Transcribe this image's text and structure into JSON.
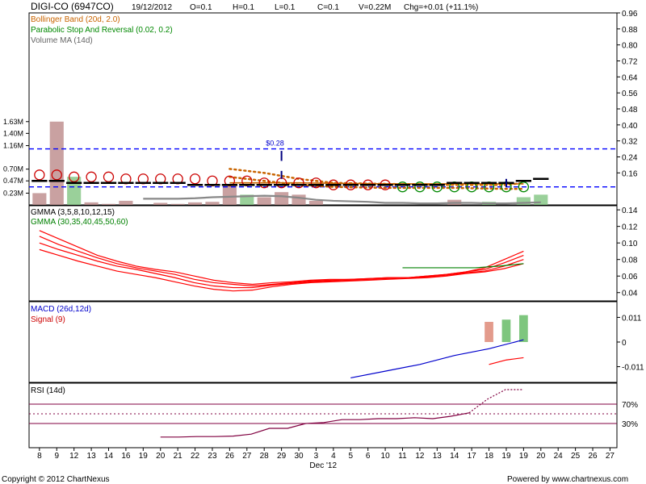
{
  "header": {
    "symbol": "DIGI-CO (6947CO)",
    "date": "19/12/2012",
    "open": "O=0.1",
    "high": "H=0.1",
    "low": "L=0.1",
    "close": "C=0.1",
    "volume": "V=0.22M",
    "change": "Chg=+0.01 (+11.1%)"
  },
  "footer": {
    "copyright": "Copyright © 2012 ChartNexus",
    "powered": "Powered by www.chartnexus.com"
  },
  "colors": {
    "bollinger": "#c86400",
    "psar": "#cc0000",
    "psar_green": "#008800",
    "volume_ma": "#888888",
    "volume_up": "#88c888",
    "volume_down": "#c09090",
    "gmma_short": "#ff0000",
    "gmma_long": "#008000",
    "macd": "#0000cc",
    "signal": "#ff0000",
    "rsi": "#800040",
    "threshold": "#0000ff"
  },
  "chart_data": [
    {
      "type": "candlestick",
      "legend": [
        "Bollinger Band (20d, 2.0)",
        "Parabolic Stop And Reversal (0.02, 0.2)",
        "Volume MA (14d)"
      ],
      "ylim": [
        0.0,
        0.96
      ],
      "ticks_right": [
        "0.96",
        "0.88",
        "0.80",
        "0.72",
        "0.64",
        "0.56",
        "0.48",
        "0.40",
        "0.32",
        "0.24",
        "0.16"
      ],
      "volume_ticks": [
        "1.63M",
        "1.40M",
        "1.16M",
        "0.70M",
        "0.47M",
        "0.23M"
      ],
      "annotation": "$0.28",
      "reference_lines": [
        0.28,
        0.09
      ],
      "x_ticks": [
        "8",
        "9",
        "12",
        "13",
        "14",
        "16",
        "19",
        "20",
        "21",
        "22",
        "23",
        "26",
        "27",
        "28",
        "29",
        "30",
        "3",
        "4",
        "5",
        "6",
        "10",
        "11",
        "12",
        "13",
        "14",
        "17",
        "18",
        "19",
        "19",
        "20",
        "24",
        "25",
        "26",
        "27"
      ],
      "x_month_label": "Dec '12",
      "close": [
        0.12,
        0.12,
        0.11,
        0.11,
        0.11,
        0.11,
        0.11,
        0.11,
        0.11,
        0.1,
        0.1,
        0.1,
        0.1,
        0.1,
        0.1,
        0.1,
        0.1,
        0.1,
        0.1,
        0.1,
        0.1,
        0.1,
        0.1,
        0.1,
        0.11,
        0.11,
        0.11,
        0.11,
        0.12,
        0.13
      ],
      "psar": [
        0.15,
        0.15,
        0.14,
        0.14,
        0.14,
        0.13,
        0.13,
        0.13,
        0.13,
        0.13,
        0.12,
        0.12,
        0.12,
        0.11,
        0.11,
        0.11,
        0.11,
        0.1,
        0.1,
        0.1,
        0.1,
        0.09,
        0.09,
        0.09,
        0.09,
        0.09,
        0.09,
        0.09,
        0.09
      ],
      "volume": [
        0.23,
        1.63,
        0.55,
        0.05,
        0.02,
        0.08,
        0.0,
        0.04,
        0.02,
        0.05,
        0.06,
        0.4,
        0.2,
        0.15,
        0.25,
        0.2,
        0.08,
        0.0,
        0.0,
        0.0,
        0.0,
        0.0,
        0.0,
        0.0,
        0.1,
        0.0,
        0.06,
        0.0,
        0.15,
        0.2
      ]
    },
    {
      "type": "line",
      "legend": [
        "GMMA (3,5,8,10,12,15)",
        "GMMA (30,35,40,45,50,60)"
      ],
      "ylim": [
        0.03,
        0.145
      ],
      "ticks_right": [
        "0.14",
        "0.12",
        "0.10",
        "0.08",
        "0.06",
        "0.04"
      ],
      "series_short": [
        [
          0.115,
          0.105,
          0.095,
          0.085,
          0.078,
          0.072,
          0.068,
          0.065,
          0.06,
          0.055,
          0.052,
          0.05,
          0.052,
          0.053,
          0.055,
          0.056,
          0.056,
          0.057,
          0.058,
          0.058,
          0.06,
          0.062,
          0.065,
          0.07,
          0.08,
          0.09
        ],
        [
          0.108,
          0.098,
          0.09,
          0.082,
          0.075,
          0.07,
          0.066,
          0.062,
          0.056,
          0.052,
          0.05,
          0.048,
          0.05,
          0.052,
          0.054,
          0.055,
          0.056,
          0.057,
          0.058,
          0.058,
          0.06,
          0.062,
          0.065,
          0.068,
          0.076,
          0.085
        ],
        [
          0.1,
          0.092,
          0.085,
          0.078,
          0.072,
          0.068,
          0.063,
          0.058,
          0.052,
          0.048,
          0.046,
          0.046,
          0.049,
          0.051,
          0.053,
          0.054,
          0.055,
          0.056,
          0.057,
          0.058,
          0.059,
          0.061,
          0.064,
          0.066,
          0.072,
          0.08
        ],
        [
          0.092,
          0.085,
          0.078,
          0.072,
          0.066,
          0.062,
          0.058,
          0.053,
          0.048,
          0.044,
          0.042,
          0.043,
          0.047,
          0.05,
          0.052,
          0.053,
          0.054,
          0.055,
          0.056,
          0.057,
          0.058,
          0.06,
          0.063,
          0.065,
          0.069,
          0.075
        ]
      ],
      "series_long": [
        0.07,
        0.07,
        0.07,
        0.07,
        0.072,
        0.075
      ]
    },
    {
      "type": "bar-line",
      "legend": [
        "MACD (26d,12d)",
        "Signal (9)"
      ],
      "ylim": [
        -0.018,
        0.018
      ],
      "ticks_right": [
        "0.011",
        "0",
        "-0.011"
      ],
      "macd": [
        -0.016,
        -0.013,
        -0.01,
        -0.006,
        -0.003,
        0.001
      ],
      "signal": [
        -0.01,
        -0.008,
        -0.007
      ],
      "histogram": [
        0.009,
        0.01,
        0.012
      ]
    },
    {
      "type": "line",
      "legend": [
        "RSI (14d)"
      ],
      "ylim": [
        0,
        100
      ],
      "ticks_right": [
        "70%",
        "30%"
      ],
      "reference_lines": [
        70,
        50,
        30
      ],
      "rsi": [
        2,
        2,
        3,
        3,
        4,
        8,
        20,
        20,
        30,
        32,
        38,
        38,
        40,
        40,
        42,
        40,
        45,
        52,
        80,
        100,
        100
      ]
    }
  ]
}
